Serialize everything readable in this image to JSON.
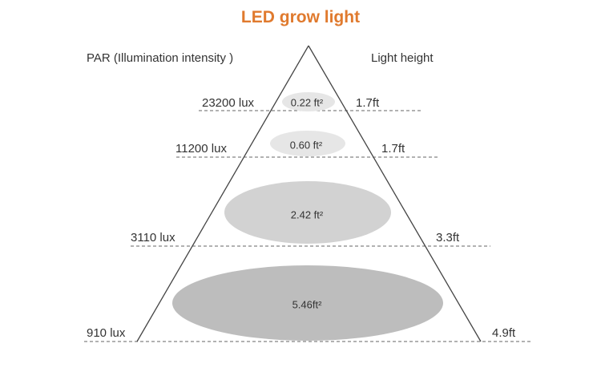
{
  "title": "LED grow light",
  "header_left": "PAR (Illumination  intensity )",
  "header_right": "Light  height",
  "levels": [
    {
      "lux": "23200 lux",
      "area": "0.22 ft²",
      "height": "1.7ft"
    },
    {
      "lux": "11200 lux",
      "area": "0.60 ft²",
      "height": "1.7ft"
    },
    {
      "lux": "3110 lux",
      "area": "2.42 ft²",
      "height": "3.3ft"
    },
    {
      "lux": "910 lux",
      "area": "5.46ft²",
      "height": "4.9ft"
    }
  ],
  "colors": {
    "title": "#e07a2e",
    "ellipse_light": "#e6e6e6",
    "ellipse_mid": "#d2d2d2",
    "ellipse_dark": "#bdbdbd",
    "lines": "#555555"
  }
}
